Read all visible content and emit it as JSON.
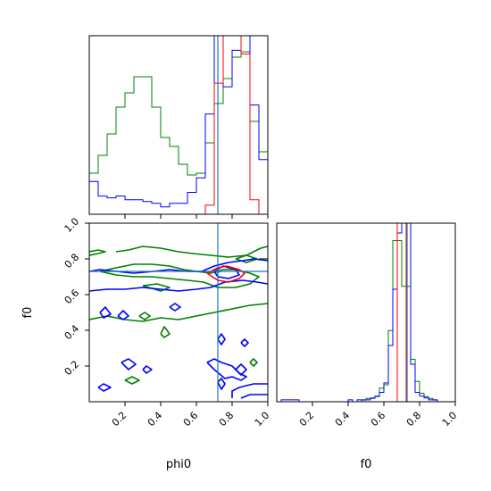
{
  "chart_data": {
    "type": "corner",
    "parameters": [
      "phi0",
      "f0"
    ],
    "truth": {
      "phi0": 0.72,
      "f0": 0.73
    },
    "colors": {
      "red": "#ff0000",
      "blue": "#0000ff",
      "green": "#008000",
      "truth": "#1f77b4",
      "axes": "#000000"
    },
    "tick_labels": {
      "ticks": [
        0.2,
        0.4,
        0.6,
        0.8,
        1.0
      ],
      "text": [
        "0.2",
        "0.4",
        "0.6",
        "0.8",
        "1.0"
      ]
    },
    "axis_labels": {
      "x_phi0": "phi0",
      "y_f0": "f0",
      "x_f0": "f0"
    },
    "hist_phi0": {
      "range": [
        0,
        1
      ],
      "bins": 20,
      "series": [
        {
          "color": "red",
          "values": [
            0,
            0,
            0,
            0,
            0,
            0,
            0,
            0,
            0,
            0,
            0,
            0,
            0,
            0.05,
            0.72,
            1.0,
            1.0,
            0.88,
            0.08,
            0
          ]
        },
        {
          "color": "blue",
          "values": [
            0.18,
            0.1,
            0.09,
            0.1,
            0.08,
            0.08,
            0.07,
            0.06,
            0.04,
            0.06,
            0.06,
            0.12,
            0.2,
            0.55,
            1.0,
            0.7,
            0.9,
            1.0,
            0.6,
            0.3
          ]
        },
        {
          "color": "green",
          "values": [
            0.23,
            0.33,
            0.45,
            0.6,
            0.68,
            0.77,
            0.77,
            0.6,
            0.43,
            0.38,
            0.28,
            0.22,
            0.23,
            0.4,
            0.62,
            0.76,
            0.88,
            0.91,
            0.52,
            0.35
          ]
        }
      ]
    },
    "hist_f0": {
      "range": [
        0,
        1
      ],
      "bins": 40,
      "series": [
        {
          "color": "red",
          "values": [
            0,
            0,
            0,
            0,
            0,
            0,
            0,
            0,
            0,
            0,
            0,
            0,
            0,
            0,
            0,
            0,
            0,
            0,
            0,
            0,
            0,
            0,
            0,
            0,
            0,
            0,
            0,
            1.0,
            1.0,
            0,
            0,
            0,
            0,
            0,
            0,
            0,
            0,
            0,
            0,
            0
          ]
        },
        {
          "color": "blue",
          "values": [
            0,
            0.01,
            0.01,
            0.01,
            0.01,
            0,
            0,
            0,
            0,
            0,
            0,
            0,
            0,
            0,
            0,
            0,
            0.01,
            0,
            0.01,
            0.01,
            0.01,
            0.02,
            0.03,
            0.05,
            0.1,
            0.3,
            0.6,
            0.9,
            1.0,
            1.0,
            0.2,
            0.05,
            0.03,
            0.02,
            0.01,
            0.01,
            0,
            0,
            0,
            0
          ]
        },
        {
          "color": "green",
          "values": [
            0,
            0,
            0,
            0,
            0,
            0,
            0,
            0,
            0,
            0,
            0,
            0,
            0,
            0,
            0,
            0,
            0,
            0,
            0,
            0.01,
            0.02,
            0.02,
            0.03,
            0.08,
            0.1,
            0.42,
            0.95,
            0.95,
            0.68,
            0.68,
            0.25,
            0.12,
            0.05,
            0.03,
            0.02,
            0.01,
            0,
            0,
            0,
            0
          ]
        }
      ]
    },
    "contour_phi0_f0": [
      {
        "color": "red",
        "paths": [
          [
            [
              0.66,
              0.72
            ],
            [
              0.72,
              0.75
            ],
            [
              0.77,
              0.76
            ],
            [
              0.84,
              0.74
            ],
            [
              0.87,
              0.72
            ],
            [
              0.84,
              0.69
            ],
            [
              0.78,
              0.67
            ],
            [
              0.72,
              0.68
            ],
            [
              0.66,
              0.72
            ]
          ]
        ]
      },
      {
        "color": "blue",
        "paths": [
          [
            [
              0,
              0.73
            ],
            [
              0.06,
              0.74
            ],
            [
              0.15,
              0.73
            ],
            [
              0.25,
              0.72
            ],
            [
              0.36,
              0.73
            ],
            [
              0.45,
              0.74
            ],
            [
              0.55,
              0.73
            ],
            [
              0.63,
              0.73
            ],
            [
              0.7,
              0.76
            ],
            [
              0.78,
              0.78
            ],
            [
              0.86,
              0.79
            ],
            [
              0.92,
              0.8
            ],
            [
              1.0,
              0.79
            ]
          ],
          [
            [
              0,
              0.62
            ],
            [
              0.1,
              0.63
            ],
            [
              0.2,
              0.63
            ],
            [
              0.3,
              0.64
            ],
            [
              0.4,
              0.63
            ],
            [
              0.5,
              0.62
            ],
            [
              0.6,
              0.63
            ],
            [
              0.68,
              0.64
            ],
            [
              0.76,
              0.67
            ],
            [
              0.86,
              0.68
            ],
            [
              0.94,
              0.67
            ],
            [
              1.0,
              0.66
            ]
          ],
          [
            [
              0.7,
              0.73
            ],
            [
              0.75,
              0.76
            ],
            [
              0.82,
              0.74
            ],
            [
              0.84,
              0.71
            ],
            [
              0.78,
              0.69
            ],
            [
              0.72,
              0.7
            ],
            [
              0.7,
              0.73
            ]
          ],
          [
            [
              0.45,
              0.53
            ],
            [
              0.48,
              0.55
            ],
            [
              0.51,
              0.53
            ],
            [
              0.48,
              0.51
            ],
            [
              0.45,
              0.53
            ]
          ],
          [
            [
              0.06,
              0.5
            ],
            [
              0.09,
              0.53
            ],
            [
              0.12,
              0.49
            ],
            [
              0.08,
              0.47
            ],
            [
              0.06,
              0.5
            ]
          ],
          [
            [
              0.16,
              0.48
            ],
            [
              0.19,
              0.51
            ],
            [
              0.22,
              0.48
            ],
            [
              0.19,
              0.46
            ],
            [
              0.16,
              0.48
            ]
          ],
          [
            [
              0.72,
              0.35
            ],
            [
              0.74,
              0.38
            ],
            [
              0.76,
              0.35
            ],
            [
              0.74,
              0.32
            ],
            [
              0.72,
              0.35
            ]
          ],
          [
            [
              0.85,
              0.33
            ],
            [
              0.87,
              0.35
            ],
            [
              0.89,
              0.33
            ],
            [
              0.87,
              0.31
            ],
            [
              0.85,
              0.33
            ]
          ],
          [
            [
              0.18,
              0.22
            ],
            [
              0.22,
              0.24
            ],
            [
              0.26,
              0.21
            ],
            [
              0.22,
              0.18
            ],
            [
              0.18,
              0.22
            ]
          ],
          [
            [
              0.3,
              0.18
            ],
            [
              0.32,
              0.2
            ],
            [
              0.35,
              0.18
            ],
            [
              0.32,
              0.16
            ],
            [
              0.3,
              0.18
            ]
          ],
          [
            [
              0.82,
              0.18
            ],
            [
              0.85,
              0.21
            ],
            [
              0.88,
              0.18
            ],
            [
              0.85,
              0.15
            ],
            [
              0.82,
              0.18
            ]
          ],
          [
            [
              0.05,
              0.08
            ],
            [
              0.08,
              0.1
            ],
            [
              0.12,
              0.08
            ],
            [
              0.08,
              0.06
            ],
            [
              0.05,
              0.08
            ]
          ],
          [
            [
              0.72,
              0.11
            ],
            [
              0.74,
              0.13
            ],
            [
              0.76,
              0.1
            ],
            [
              0.74,
              0.07
            ],
            [
              0.72,
              0.11
            ]
          ],
          [
            [
              0.66,
              0.22
            ],
            [
              0.7,
              0.18
            ],
            [
              0.76,
              0.13
            ],
            [
              0.8,
              0.14
            ],
            [
              0.85,
              0.12
            ],
            [
              0.88,
              0.14
            ],
            [
              0.84,
              0.16
            ],
            [
              0.8,
              0.2
            ],
            [
              0.74,
              0.22
            ],
            [
              0.7,
              0.24
            ],
            [
              0.66,
              0.22
            ]
          ],
          [
            [
              0.8,
              0.02
            ],
            [
              0.8,
              0.06
            ],
            [
              0.84,
              0.08
            ],
            [
              0.92,
              0.1
            ],
            [
              1.0,
              0.1
            ]
          ],
          [
            [
              0.85,
              0.02
            ],
            [
              0.9,
              0.04
            ],
            [
              1.0,
              0.04
            ]
          ]
        ]
      },
      {
        "color": "green",
        "paths": [
          [
            [
              0,
              0.82
            ],
            [
              0.05,
              0.83
            ],
            [
              0.09,
              0.84
            ],
            [
              0.05,
              0.85
            ],
            [
              0,
              0.84
            ]
          ],
          [
            [
              0.15,
              0.84
            ],
            [
              0.22,
              0.85
            ],
            [
              0.3,
              0.87
            ],
            [
              0.4,
              0.86
            ],
            [
              0.5,
              0.84
            ],
            [
              0.58,
              0.83
            ],
            [
              0.68,
              0.82
            ],
            [
              0.78,
              0.81
            ],
            [
              0.88,
              0.82
            ],
            [
              0.96,
              0.86
            ],
            [
              1.0,
              0.87
            ]
          ],
          [
            [
              0.95,
              0.8
            ],
            [
              1.0,
              0.8
            ]
          ],
          [
            [
              0.06,
              0.73
            ],
            [
              0.15,
              0.75
            ],
            [
              0.25,
              0.77
            ],
            [
              0.35,
              0.77
            ],
            [
              0.45,
              0.76
            ],
            [
              0.53,
              0.74
            ],
            [
              0.6,
              0.73
            ],
            [
              0.68,
              0.72
            ],
            [
              0.75,
              0.74
            ],
            [
              0.82,
              0.74
            ],
            [
              0.9,
              0.72
            ],
            [
              0.95,
              0.7
            ],
            [
              0.9,
              0.66
            ],
            [
              0.82,
              0.64
            ],
            [
              0.72,
              0.64
            ],
            [
              0.64,
              0.67
            ],
            [
              0.55,
              0.68
            ],
            [
              0.45,
              0.69
            ],
            [
              0.35,
              0.7
            ],
            [
              0.25,
              0.7
            ],
            [
              0.15,
              0.71
            ],
            [
              0.06,
              0.73
            ]
          ],
          [
            [
              0.3,
              0.65
            ],
            [
              0.38,
              0.66
            ],
            [
              0.45,
              0.64
            ],
            [
              0.4,
              0.62
            ],
            [
              0.3,
              0.65
            ]
          ],
          [
            [
              0,
              0.46
            ],
            [
              0.1,
              0.48
            ],
            [
              0.2,
              0.46
            ],
            [
              0.3,
              0.45
            ],
            [
              0.4,
              0.47
            ],
            [
              0.5,
              0.46
            ],
            [
              0.6,
              0.48
            ],
            [
              0.7,
              0.5
            ],
            [
              0.8,
              0.52
            ],
            [
              0.9,
              0.54
            ],
            [
              1.0,
              0.55
            ]
          ],
          [
            [
              0.28,
              0.48
            ],
            [
              0.31,
              0.5
            ],
            [
              0.34,
              0.48
            ],
            [
              0.31,
              0.46
            ],
            [
              0.28,
              0.48
            ]
          ],
          [
            [
              0.4,
              0.38
            ],
            [
              0.42,
              0.42
            ],
            [
              0.45,
              0.38
            ],
            [
              0.42,
              0.36
            ],
            [
              0.4,
              0.38
            ]
          ],
          [
            [
              0.2,
              0.12
            ],
            [
              0.24,
              0.14
            ],
            [
              0.28,
              0.12
            ],
            [
              0.24,
              0.1
            ],
            [
              0.2,
              0.12
            ]
          ],
          [
            [
              0.9,
              0.22
            ],
            [
              0.92,
              0.24
            ],
            [
              0.94,
              0.22
            ],
            [
              0.92,
              0.2
            ],
            [
              0.9,
              0.22
            ]
          ],
          [
            [
              0.82,
              0.8
            ],
            [
              0.88,
              0.82
            ],
            [
              0.94,
              0.8
            ],
            [
              0.88,
              0.78
            ],
            [
              0.82,
              0.8
            ]
          ]
        ]
      }
    ]
  }
}
